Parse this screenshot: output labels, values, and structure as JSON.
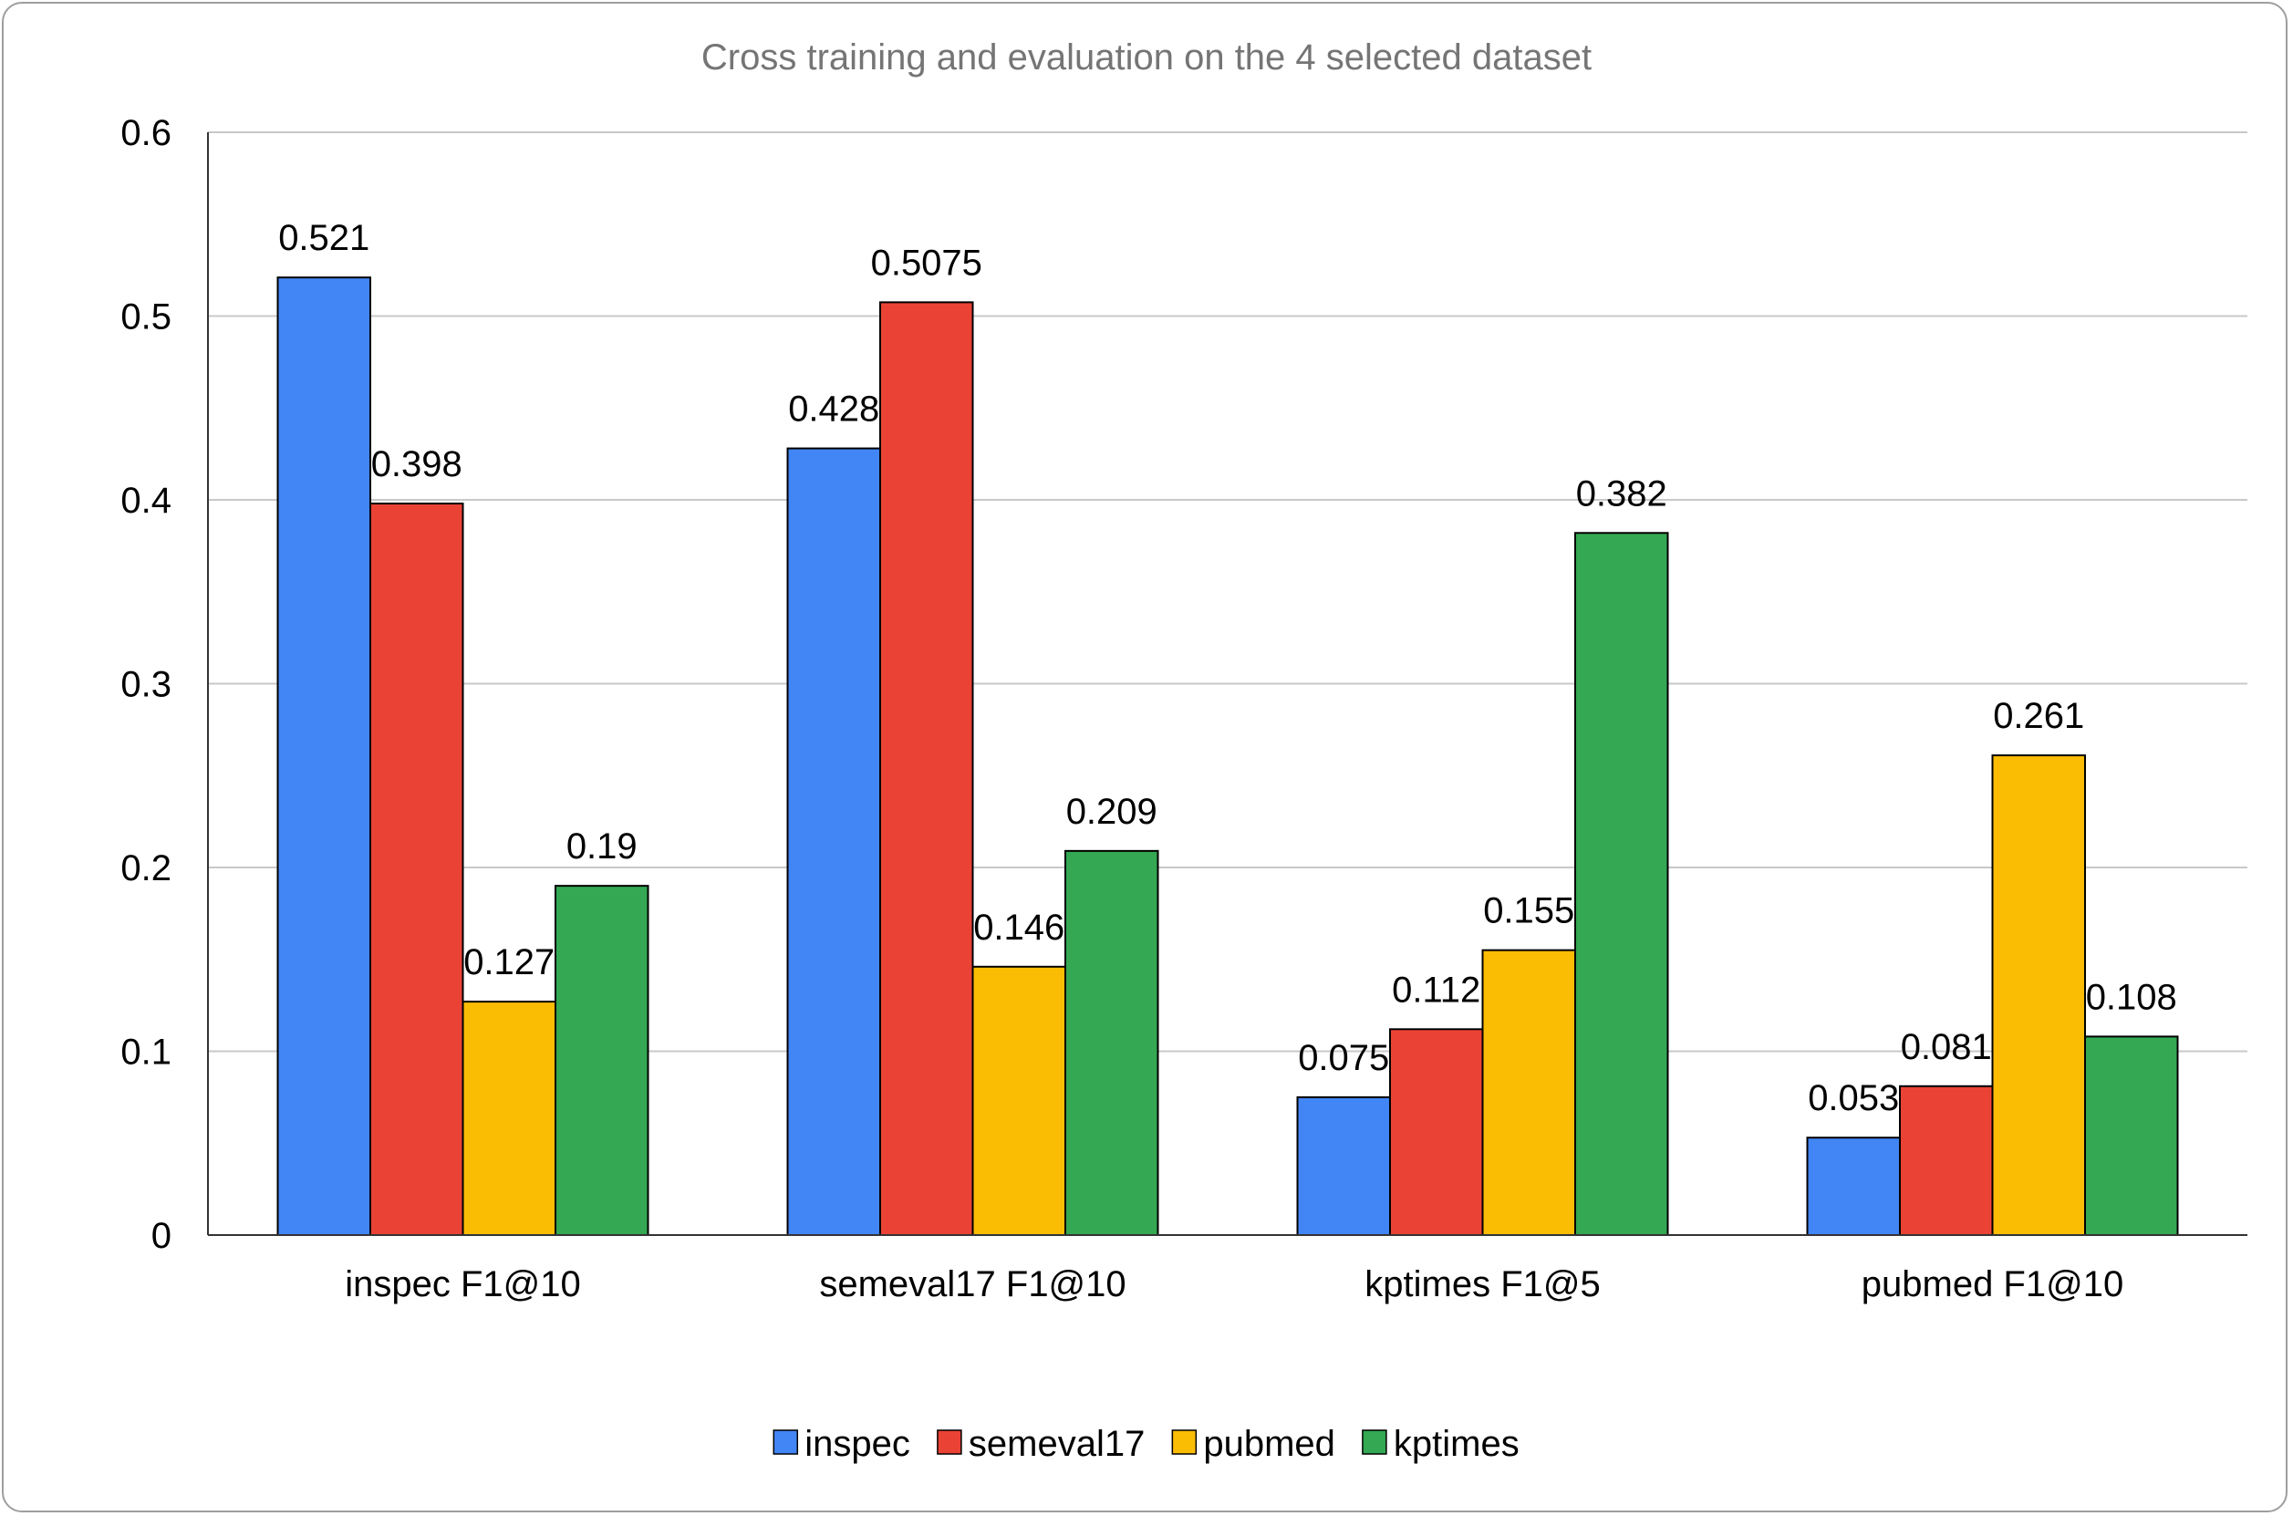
{
  "chart_data": {
    "type": "bar",
    "title": "Cross training and evaluation on the 4 selected dataset",
    "xlabel": "",
    "ylabel": "",
    "categories": [
      "inspec F1@10",
      "semeval17 F1@10",
      "kptimes F1@5",
      "pubmed F1@10"
    ],
    "series": [
      {
        "name": "inspec",
        "color": "#4285f4",
        "values": [
          0.521,
          0.428,
          0.075,
          0.053
        ]
      },
      {
        "name": "semeval17",
        "color": "#ea4335",
        "values": [
          0.398,
          0.5075,
          0.112,
          0.081
        ]
      },
      {
        "name": "pubmed",
        "color": "#fbbc04",
        "values": [
          0.127,
          0.146,
          0.155,
          0.261
        ]
      },
      {
        "name": "kptimes",
        "color": "#34a853",
        "values": [
          0.19,
          0.209,
          0.382,
          0.108
        ]
      }
    ],
    "ylim": [
      0,
      0.6
    ],
    "yticks": [
      "0",
      "0.1",
      "0.2",
      "0.3",
      "0.4",
      "0.5",
      "0.6"
    ],
    "grid": true,
    "legend_position": "bottom",
    "data_labels": [
      [
        "0.521",
        "0.428",
        "0.075",
        "0.053"
      ],
      [
        "0.398",
        "0.5075",
        "0.112",
        "0.081"
      ],
      [
        "0.127",
        "0.146",
        "0.155",
        "0.261"
      ],
      [
        "0.19",
        "0.209",
        "0.382",
        "0.108"
      ]
    ]
  }
}
